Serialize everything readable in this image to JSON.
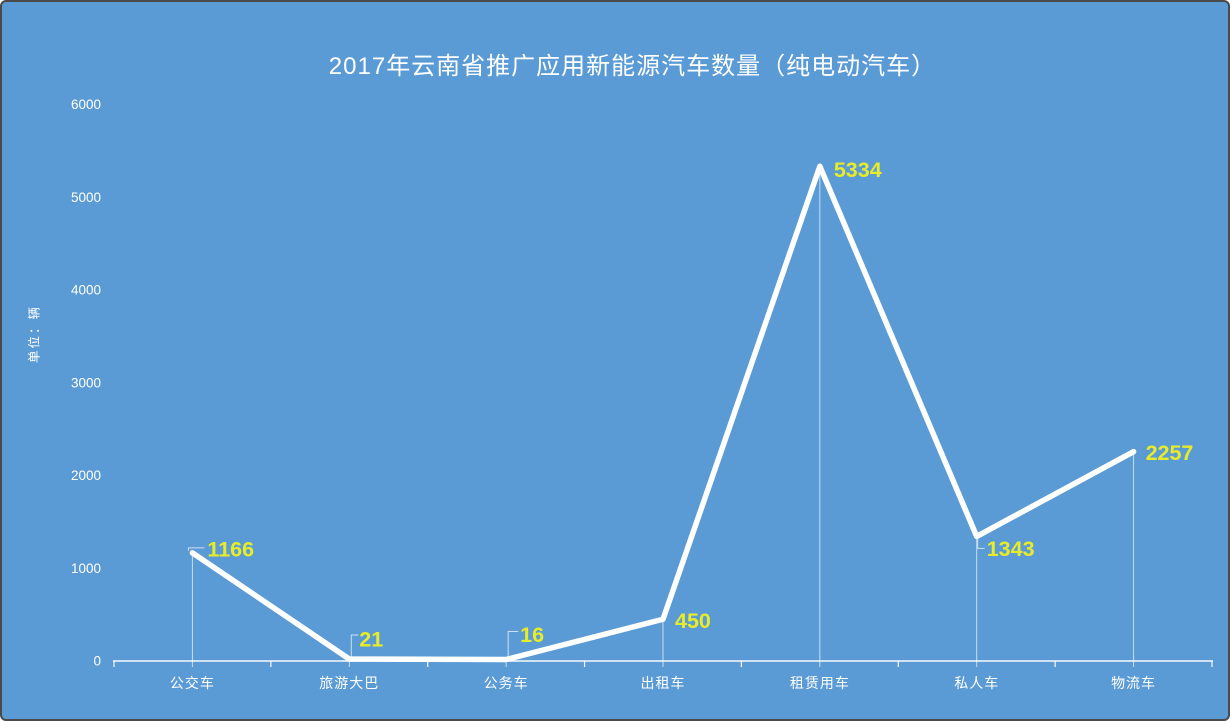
{
  "window": {
    "border_color": "#4A4A4A"
  },
  "chart_data": {
    "type": "line",
    "title": "2017年云南省推广应用新能源汽车数量（纯电动汽车）",
    "categories": [
      "公交车",
      "旅游大巴",
      "公务车",
      "出租车",
      "租赁用车",
      "私人车",
      "物流车"
    ],
    "values": [
      1166,
      21,
      16,
      450,
      5334,
      1343,
      2257
    ],
    "xlabel": "",
    "ylabel": "单位：辆",
    "ylim": [
      0,
      6000
    ],
    "ytick_step": 1000,
    "ytick_labels": [
      "0",
      "1000",
      "2000",
      "3000",
      "4000",
      "5000",
      "6000"
    ],
    "grid": false,
    "legend": "none",
    "data_labels": true
  },
  "colors": {
    "background": "#5B9BD5",
    "line": "#FFFFFF",
    "data_label": "#E8EC28",
    "axis": "#FFFFFF",
    "text": "#FFFFFF",
    "border": "#4A4A4A"
  }
}
